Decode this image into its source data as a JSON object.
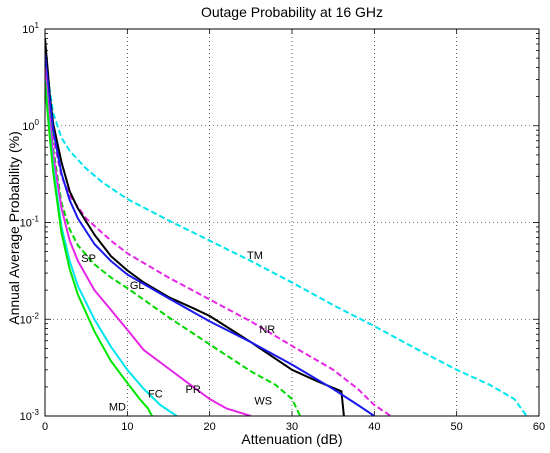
{
  "chart_data": {
    "type": "line",
    "title": "Outage Probability at 16 GHz",
    "xlabel": "Attenuation (dB)",
    "ylabel": "Annual Average Probability (%)",
    "xlim": [
      0,
      60
    ],
    "ylim": [
      0.001,
      10
    ],
    "yscale": "log",
    "grid": true,
    "x_ticks": [
      {
        "value": 0,
        "label": "0"
      },
      {
        "value": 10,
        "label": "10"
      },
      {
        "value": 20,
        "label": "20"
      },
      {
        "value": 30,
        "label": "30"
      },
      {
        "value": 40,
        "label": "40"
      },
      {
        "value": 50,
        "label": "50"
      },
      {
        "value": 60,
        "label": "60"
      }
    ],
    "y_ticks": [
      {
        "value": 0.001,
        "base": "10",
        "exp": "-3"
      },
      {
        "value": 0.01,
        "base": "10",
        "exp": "-2"
      },
      {
        "value": 0.1,
        "base": "10",
        "exp": "-1"
      },
      {
        "value": 1,
        "base": "10",
        "exp": "0"
      },
      {
        "value": 10,
        "base": "10",
        "exp": "1"
      }
    ],
    "series": [
      {
        "name": "TM",
        "color": "#00e5ee",
        "style": "dashed",
        "label_at": [
          25.5,
          0.046
        ],
        "points": [
          [
            0,
            6
          ],
          [
            0.5,
            2.6
          ],
          [
            1,
            1.35
          ],
          [
            2,
            0.75
          ],
          [
            3,
            0.55
          ],
          [
            5,
            0.36
          ],
          [
            7,
            0.26
          ],
          [
            10,
            0.175
          ],
          [
            15,
            0.105
          ],
          [
            20,
            0.065
          ],
          [
            25,
            0.04
          ],
          [
            30,
            0.024
          ],
          [
            35,
            0.014
          ],
          [
            40,
            0.0085
          ],
          [
            45,
            0.005
          ],
          [
            50,
            0.003
          ],
          [
            54,
            0.0021
          ],
          [
            57,
            0.0015
          ],
          [
            58.5,
            0.001
          ]
        ]
      },
      {
        "name": "NR",
        "color": "#e626e6",
        "style": "dashed",
        "label_at": [
          27,
          0.0079
        ],
        "points": [
          [
            0,
            4.5
          ],
          [
            0.5,
            1.6
          ],
          [
            1,
            0.75
          ],
          [
            2,
            0.3
          ],
          [
            3,
            0.19
          ],
          [
            5,
            0.11
          ],
          [
            8,
            0.065
          ],
          [
            10,
            0.048
          ],
          [
            15,
            0.027
          ],
          [
            20,
            0.016
          ],
          [
            25,
            0.0095
          ],
          [
            30,
            0.0053
          ],
          [
            35,
            0.003
          ],
          [
            38,
            0.0019
          ],
          [
            40,
            0.0013
          ],
          [
            42,
            0.001
          ]
        ]
      },
      {
        "name": "GL",
        "color": "#000000",
        "style": "solid",
        "label_at": [
          11.2,
          0.0225
        ],
        "points": [
          [
            0,
            8
          ],
          [
            0.3,
            4
          ],
          [
            0.6,
            2
          ],
          [
            1,
            1.05
          ],
          [
            2,
            0.42
          ],
          [
            3,
            0.21
          ],
          [
            4,
            0.14
          ],
          [
            6,
            0.075
          ],
          [
            8,
            0.045
          ],
          [
            10,
            0.032
          ],
          [
            12,
            0.024
          ],
          [
            15,
            0.017
          ],
          [
            18,
            0.013
          ],
          [
            20,
            0.0108
          ],
          [
            25,
            0.0058
          ],
          [
            30,
            0.003
          ],
          [
            33,
            0.0023
          ],
          [
            36,
            0.0018
          ],
          [
            36.3,
            0.001
          ]
        ]
      },
      {
        "name": "SP",
        "color": "#1a1aee",
        "style": "solid",
        "label_at": [
          5.3,
          0.043
        ],
        "points": [
          [
            0,
            5.5
          ],
          [
            0.5,
            2.1
          ],
          [
            1,
            0.9
          ],
          [
            2,
            0.32
          ],
          [
            3,
            0.17
          ],
          [
            4,
            0.11
          ],
          [
            6,
            0.06
          ],
          [
            8,
            0.04
          ],
          [
            10,
            0.029
          ],
          [
            15,
            0.0165
          ],
          [
            20,
            0.0095
          ],
          [
            25,
            0.0058
          ],
          [
            30,
            0.0034
          ],
          [
            35,
            0.0019
          ],
          [
            38,
            0.0013
          ],
          [
            40,
            0.001
          ]
        ]
      },
      {
        "name": "WS",
        "color": "#00d800",
        "style": "dashed",
        "label_at": [
          26.5,
          0.00145
        ],
        "points": [
          [
            0,
            4
          ],
          [
            0.5,
            1.4
          ],
          [
            1,
            0.58
          ],
          [
            2,
            0.16
          ],
          [
            3,
            0.085
          ],
          [
            4,
            0.058
          ],
          [
            6,
            0.037
          ],
          [
            8,
            0.027
          ],
          [
            10,
            0.021
          ],
          [
            15,
            0.0105
          ],
          [
            20,
            0.0055
          ],
          [
            25,
            0.0029
          ],
          [
            28,
            0.0021
          ],
          [
            30,
            0.0015
          ],
          [
            31,
            0.001
          ]
        ]
      },
      {
        "name": "PR",
        "color": "#e626e6",
        "style": "solid",
        "label_at": [
          18,
          0.0019
        ],
        "points": [
          [
            0,
            4
          ],
          [
            0.5,
            1.3
          ],
          [
            1,
            0.5
          ],
          [
            2,
            0.14
          ],
          [
            3,
            0.065
          ],
          [
            4,
            0.04
          ],
          [
            6,
            0.02
          ],
          [
            8,
            0.0125
          ],
          [
            10,
            0.0078
          ],
          [
            12,
            0.0048
          ],
          [
            15,
            0.0031
          ],
          [
            18,
            0.002
          ],
          [
            20,
            0.0015
          ],
          [
            22,
            0.0012
          ],
          [
            25,
            0.001
          ]
        ]
      },
      {
        "name": "FC",
        "color": "#00e5ee",
        "style": "solid",
        "label_at": [
          13.4,
          0.0017
        ],
        "points": [
          [
            0,
            3
          ],
          [
            0.5,
            1
          ],
          [
            1,
            0.38
          ],
          [
            2,
            0.09
          ],
          [
            3,
            0.04
          ],
          [
            4,
            0.022
          ],
          [
            6,
            0.01
          ],
          [
            8,
            0.0052
          ],
          [
            10,
            0.003
          ],
          [
            12,
            0.0019
          ],
          [
            14,
            0.0013
          ],
          [
            16,
            0.001
          ]
        ]
      },
      {
        "name": "MD",
        "color": "#00e800",
        "style": "solid",
        "label_at": [
          8.8,
          0.00125
        ],
        "points": [
          [
            0,
            2.8
          ],
          [
            0.5,
            0.9
          ],
          [
            1,
            0.33
          ],
          [
            2,
            0.078
          ],
          [
            3,
            0.033
          ],
          [
            4,
            0.018
          ],
          [
            6,
            0.0075
          ],
          [
            8,
            0.0037
          ],
          [
            10,
            0.0022
          ],
          [
            11.5,
            0.0015
          ],
          [
            12.5,
            0.0012
          ],
          [
            13,
            0.001
          ]
        ]
      }
    ]
  }
}
